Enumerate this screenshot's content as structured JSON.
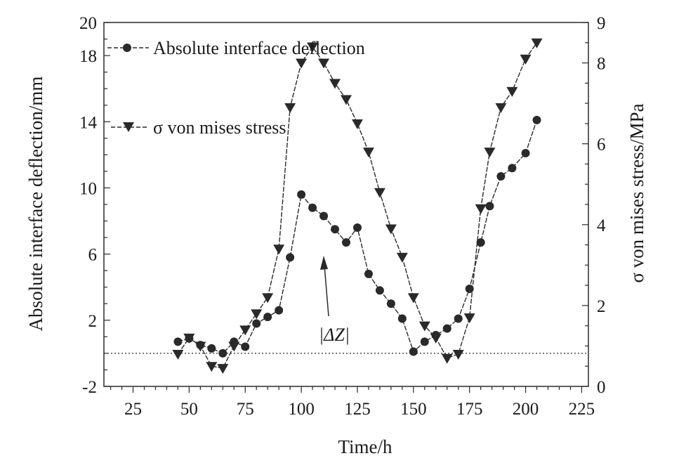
{
  "chart_data": {
    "type": "line",
    "xlabel": "Time/h",
    "ylabel_left": "Absolute interface deflection/mm",
    "ylabel_right": "σ von mises stress/MPa",
    "xlim": [
      12,
      228
    ],
    "ylim_left": [
      -2,
      20
    ],
    "ylim_right": [
      0,
      9
    ],
    "x_ticks": [
      "25",
      "50",
      "75",
      "100",
      "125",
      "150",
      "175",
      "200",
      "225"
    ],
    "y_left_ticks": [
      "-2",
      "2",
      "6",
      "10",
      "14",
      "18",
      "20"
    ],
    "y_right_ticks": [
      "0",
      "2",
      "4",
      "6",
      "8",
      "9"
    ],
    "reference_line_y": 0,
    "annotation": "|ΔZ|",
    "legend_position": "top-left",
    "series": [
      {
        "name": "Absolute interface deflection",
        "axis": "left",
        "marker": "circle",
        "x": [
          45,
          50,
          55,
          60,
          65,
          70,
          75,
          80,
          85,
          90,
          95,
          100,
          105,
          110,
          115,
          120,
          125,
          130,
          135,
          140,
          145,
          150,
          155,
          160,
          165,
          170,
          175,
          180,
          184,
          189,
          194,
          200,
          205
        ],
        "values": [
          0.7,
          0.9,
          0.5,
          0.3,
          0.0,
          0.7,
          0.4,
          1.8,
          2.2,
          2.6,
          5.8,
          9.6,
          8.8,
          8.3,
          7.5,
          6.7,
          7.6,
          4.8,
          3.8,
          3.0,
          2.1,
          0.1,
          0.7,
          1.1,
          1.5,
          2.1,
          3.9,
          6.7,
          8.9,
          10.7,
          11.2,
          12.1,
          14.1
        ]
      },
      {
        "name": "σ von mises stress",
        "axis": "right",
        "marker": "triangle-down",
        "x": [
          45,
          50,
          55,
          60,
          65,
          70,
          75,
          80,
          85,
          90,
          95,
          100,
          105,
          110,
          115,
          120,
          125,
          130,
          135,
          140,
          145,
          150,
          155,
          160,
          165,
          170,
          175,
          180,
          184,
          189,
          194,
          200,
          205
        ],
        "values": [
          0.8,
          1.2,
          1.0,
          0.5,
          0.45,
          1.0,
          1.4,
          1.8,
          2.2,
          3.4,
          6.9,
          8.0,
          8.4,
          8.0,
          7.5,
          7.1,
          6.5,
          5.8,
          4.8,
          3.9,
          3.2,
          2.2,
          1.5,
          1.2,
          0.7,
          0.8,
          1.7,
          4.4,
          5.8,
          6.9,
          7.3,
          8.1,
          8.5
        ]
      }
    ]
  },
  "annotation": {
    "text": "|ΔZ|"
  }
}
